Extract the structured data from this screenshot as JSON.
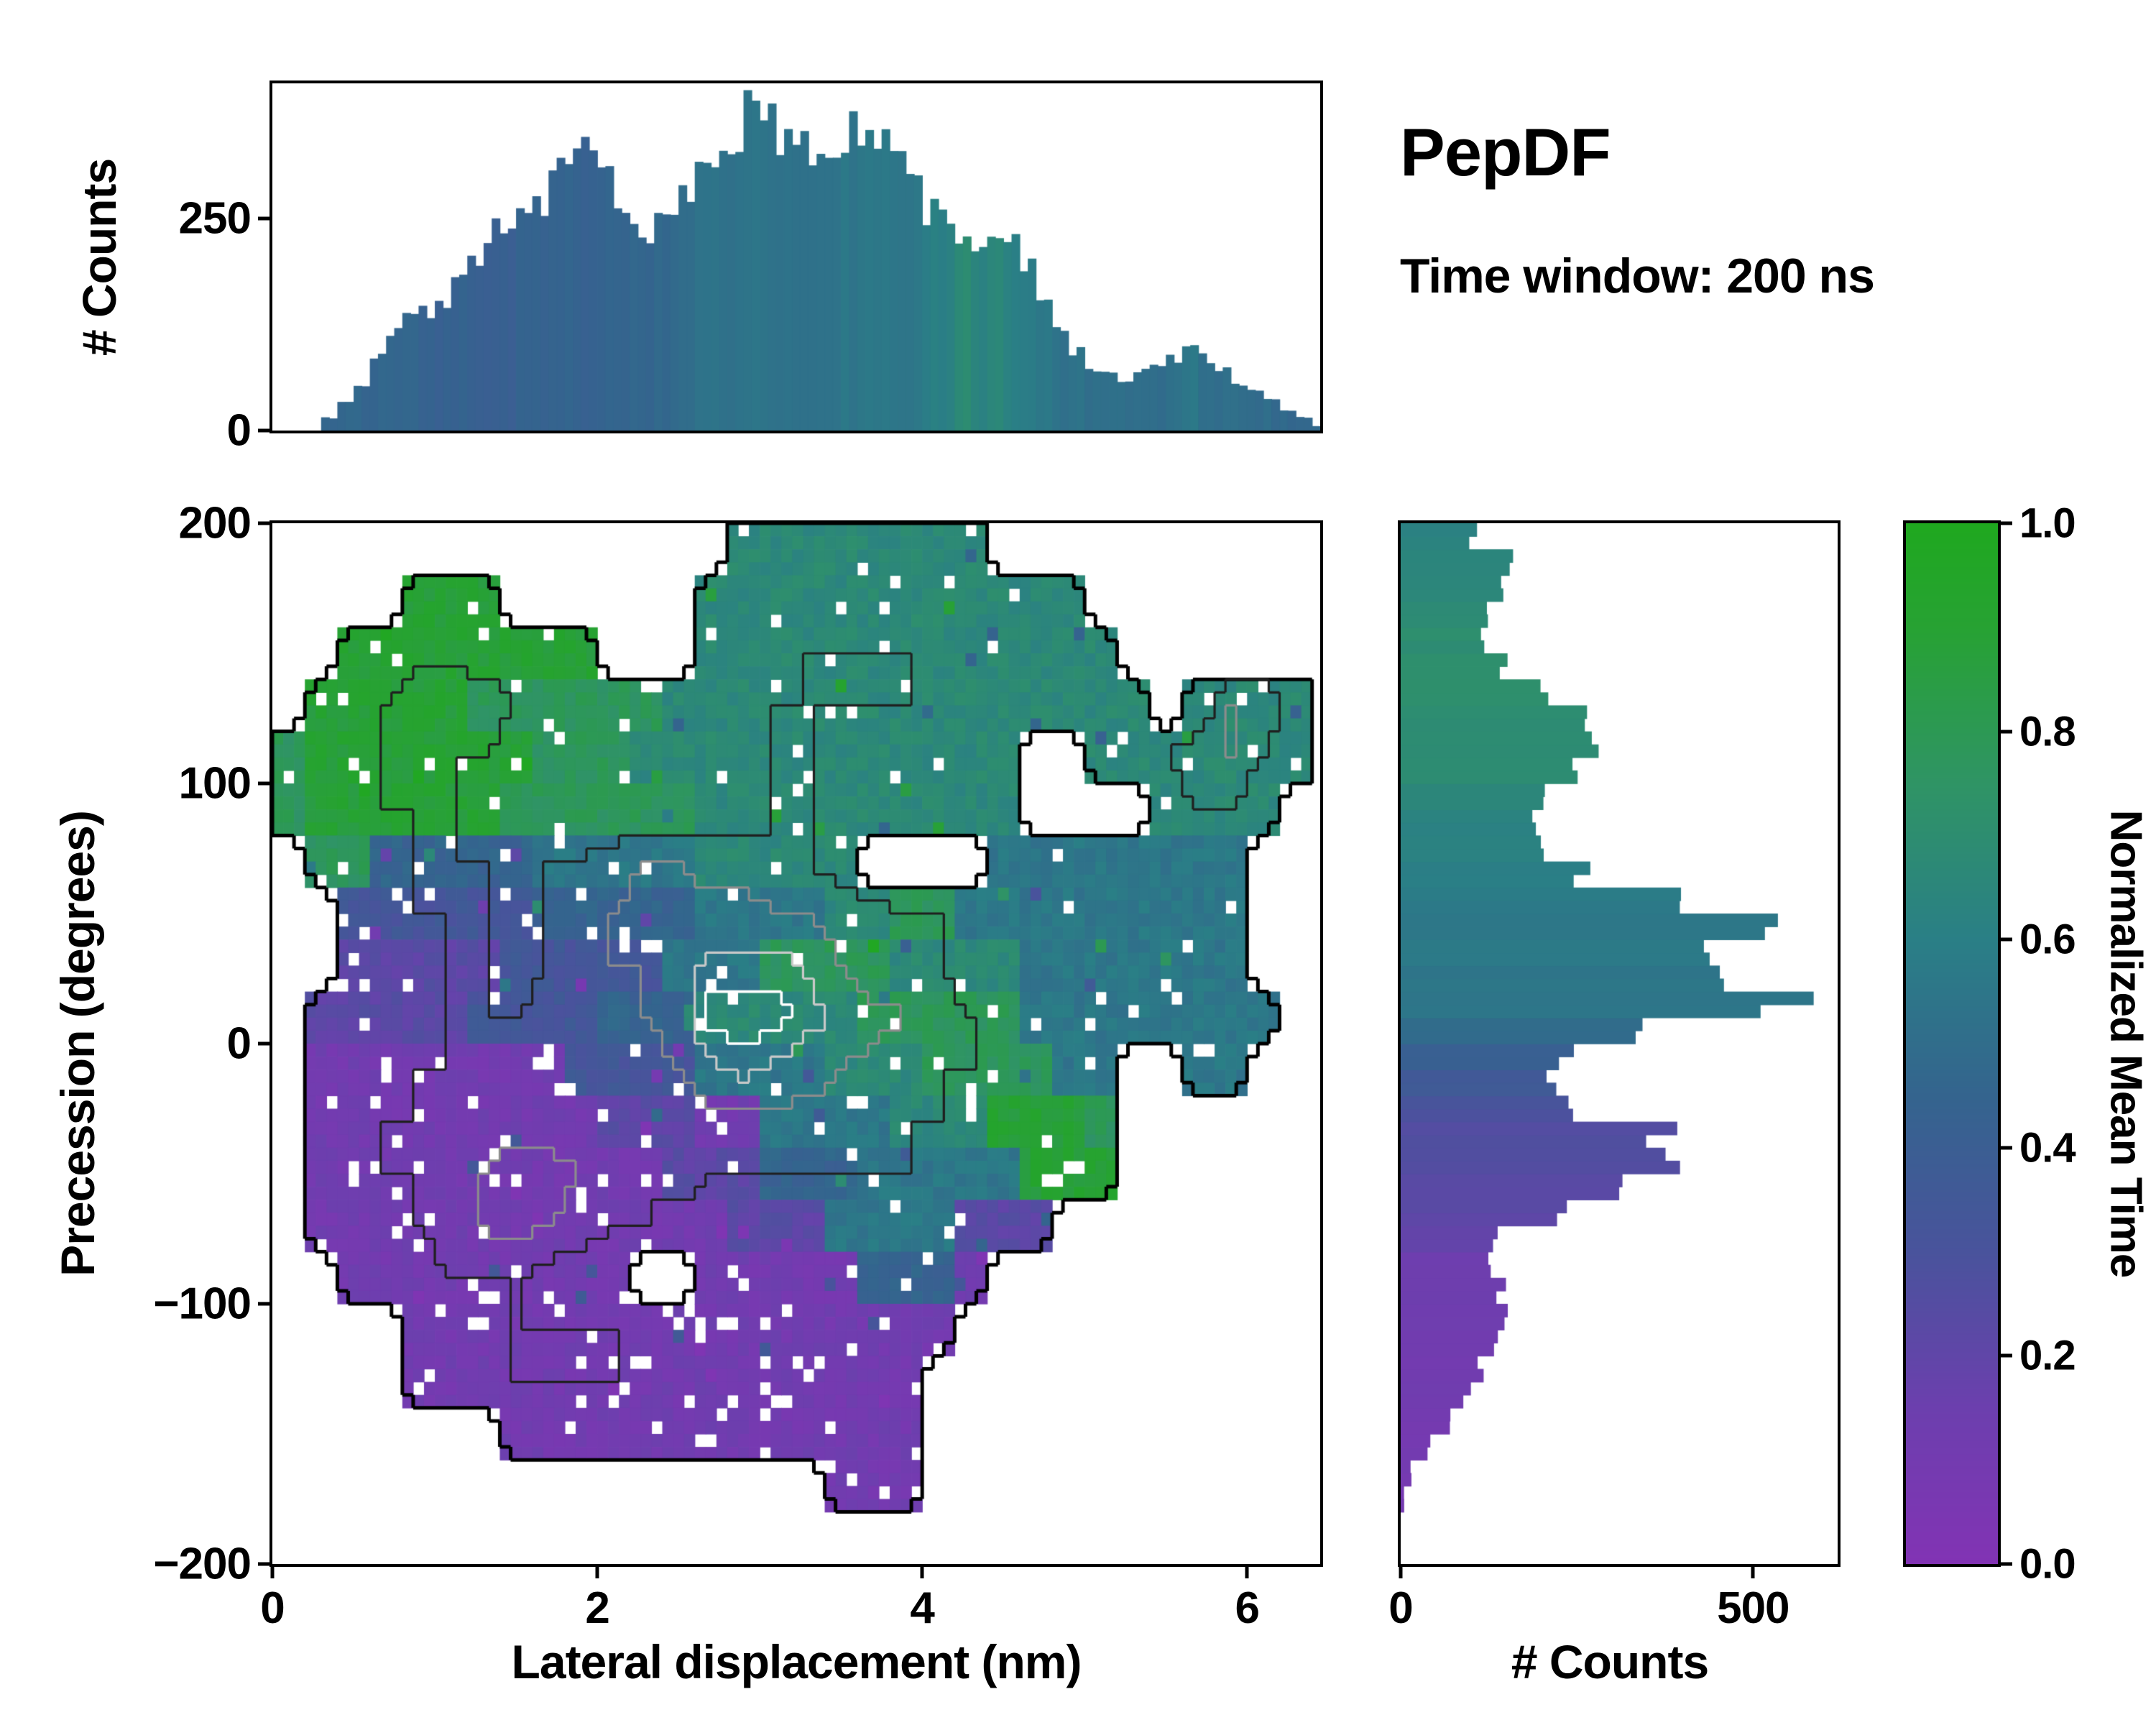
{
  "header": {
    "title": "PepDF",
    "subtitle": "Time window: 200 ns"
  },
  "axes": {
    "top": {
      "ylabel": "# Counts",
      "ylim": [
        0,
        410
      ],
      "yticks": [
        {
          "v": 0,
          "label": "0"
        },
        {
          "v": 250,
          "label": "250"
        }
      ]
    },
    "main": {
      "xlabel": "Lateral displacement (nm)",
      "ylabel": "Precession (degrees)",
      "xlim": [
        0,
        6.45
      ],
      "ylim": [
        -200,
        200
      ],
      "xticks": [
        {
          "v": 0,
          "label": "0"
        },
        {
          "v": 2,
          "label": "2"
        },
        {
          "v": 4,
          "label": "4"
        },
        {
          "v": 6,
          "label": "6"
        }
      ],
      "yticks": [
        {
          "v": 200,
          "label": "200"
        },
        {
          "v": 100,
          "label": "100"
        },
        {
          "v": 0,
          "label": "0"
        },
        {
          "v": -100,
          "label": "−100"
        },
        {
          "v": -200,
          "label": "−200"
        }
      ]
    },
    "right": {
      "xlabel": "# Counts",
      "xlim": [
        0,
        620
      ],
      "xticks": [
        {
          "v": 0,
          "label": "0"
        },
        {
          "v": 500,
          "label": "500"
        }
      ]
    },
    "colorbar": {
      "label": "Normalized Mean Time",
      "lim": [
        0,
        1
      ],
      "ticks": [
        {
          "v": 0,
          "label": "0.0"
        },
        {
          "v": 0.2,
          "label": "0.2"
        },
        {
          "v": 0.4,
          "label": "0.4"
        },
        {
          "v": 0.6,
          "label": "0.6"
        },
        {
          "v": 0.8,
          "label": "0.8"
        },
        {
          "v": 1,
          "label": "1.0"
        }
      ]
    }
  },
  "chart_data": {
    "type": "2d-histogram-with-marginals",
    "colormap": {
      "name": "purple-blue-green",
      "stops": [
        [
          0,
          "#8233b4"
        ],
        [
          0.15,
          "#6c3fae"
        ],
        [
          0.3,
          "#49539c"
        ],
        [
          0.45,
          "#34648e"
        ],
        [
          0.6,
          "#2a7f86"
        ],
        [
          0.75,
          "#2f9465"
        ],
        [
          0.9,
          "#27a233"
        ],
        [
          1,
          "#1fa81f"
        ]
      ]
    },
    "top_marginal": {
      "type": "bar",
      "orientation": "vertical",
      "bin_start": 0,
      "bin_width": 0.1,
      "counts": [
        0,
        0,
        0,
        15,
        35,
        55,
        90,
        120,
        135,
        140,
        155,
        185,
        200,
        235,
        245,
        255,
        270,
        300,
        310,
        330,
        300,
        260,
        235,
        240,
        250,
        280,
        310,
        330,
        345,
        380,
        360,
        340,
        355,
        330,
        340,
        350,
        355,
        340,
        315,
        300,
        260,
        250,
        230,
        215,
        235,
        220,
        190,
        150,
        120,
        95,
        75,
        65,
        60,
        70,
        75,
        85,
        100,
        85,
        70,
        55,
        45,
        35,
        25,
        15,
        5
      ],
      "mean_time": [
        0.46,
        0.46,
        0.46,
        0.46,
        0.46,
        0.46,
        0.46,
        0.45,
        0.45,
        0.45,
        0.43,
        0.43,
        0.42,
        0.42,
        0.42,
        0.43,
        0.43,
        0.43,
        0.44,
        0.44,
        0.44,
        0.44,
        0.47,
        0.47,
        0.48,
        0.48,
        0.52,
        0.52,
        0.52,
        0.53,
        0.53,
        0.52,
        0.52,
        0.53,
        0.55,
        0.55,
        0.56,
        0.56,
        0.55,
        0.55,
        0.6,
        0.6,
        0.68,
        0.62,
        0.65,
        0.6,
        0.58,
        0.57,
        0.52,
        0.52,
        0.51,
        0.5,
        0.5,
        0.5,
        0.5,
        0.52,
        0.55,
        0.52,
        0.5,
        0.5,
        0.49,
        0.49,
        0.48,
        0.48,
        0.47
      ]
    },
    "right_marginal": {
      "type": "bar",
      "orientation": "horizontal",
      "bin_start": -200,
      "bin_width": 10,
      "counts": [
        0,
        0,
        5,
        15,
        40,
        70,
        95,
        115,
        135,
        150,
        140,
        125,
        140,
        230,
        335,
        390,
        365,
        255,
        210,
        235,
        340,
        550,
        465,
        425,
        520,
        385,
        255,
        200,
        180,
        195,
        245,
        285,
        255,
        195,
        150,
        120,
        115,
        145,
        160,
        105
      ],
      "mean_time": [
        0.1,
        0.1,
        0.09,
        0.09,
        0.1,
        0.1,
        0.11,
        0.11,
        0.12,
        0.12,
        0.13,
        0.15,
        0.18,
        0.22,
        0.24,
        0.25,
        0.26,
        0.3,
        0.36,
        0.42,
        0.5,
        0.55,
        0.55,
        0.56,
        0.57,
        0.58,
        0.6,
        0.62,
        0.63,
        0.65,
        0.68,
        0.7,
        0.7,
        0.72,
        0.72,
        0.7,
        0.68,
        0.66,
        0.64,
        0.62
      ]
    },
    "heatmap": {
      "type": "heatmap",
      "x0": 0,
      "dx": 0.2,
      "y_top": 200,
      "dy": 20,
      "value_encoding": "normalized mean time = digit/9, '.' = empty bin",
      "mean_rows": [
        "..............66666666..........",
        "....888......666666666666.......",
        "..88888888...6666666666666......",
        ".88888777777666666666666666.6666",
        "78888888777666666666666..6666666",
        "78888887777776666666666....6666.",
        ".77444445555566666....55555555..",
        "..3333334444455556677555555555..",
        "..2222233333555777766665555555..",
        ".222223333444666667777755555555.",
        ".1111111133335555666777755..55..",
        ".1111111112221155556668887......",
        ".1111111111122244455555888......",
        ".11111111111112225555222........",
        "..111111111..111114441..........",
        "....11111111111111111...........",
        "....1111111111111111............",
        ".......1111111111111............",
        ".................111............",
        "................................"
      ],
      "density_rows": [
        "..............11111111..........",
        "....111......122222222221.......",
        "..11222211...1223333222221......",
        ".12355433221122333332222211.1551",
        "11233332211223333222211..1135531",
        "11233322211112233332221....1331.",
        ".12233323345544332....22222211..",
        "..1233333456666554433222222211..",
        "..1223323455688875333222222211..",
        ".122233344456999876543322222111.",
        ".1223333334457876543332221..11..",
        ".1233444434434444433322211......",
        ".1233456654343333333222221......",
        ".12234565433222222222211........",
        "..122333221..222222211..........",
        "....12233333222222111...........",
        "....1223333222221111............",
        ".......1122222221111............",
        ".................111............",
        "................................"
      ],
      "contour_levels": [
        {
          "field": "mask",
          "thr": 0.5,
          "color": "#000000",
          "lw": 5
        },
        {
          "field": "density",
          "thr": 3,
          "color": "#1f1f1f",
          "lw": 3.2
        },
        {
          "field": "density",
          "thr": 5,
          "color": "#8c8c8c",
          "lw": 3.2
        },
        {
          "field": "density",
          "thr": 7.3,
          "color": "#c9c9c9",
          "lw": 3.2
        },
        {
          "field": "density",
          "thr": 8.5,
          "color": "#ffffff",
          "lw": 3.6
        }
      ]
    }
  }
}
